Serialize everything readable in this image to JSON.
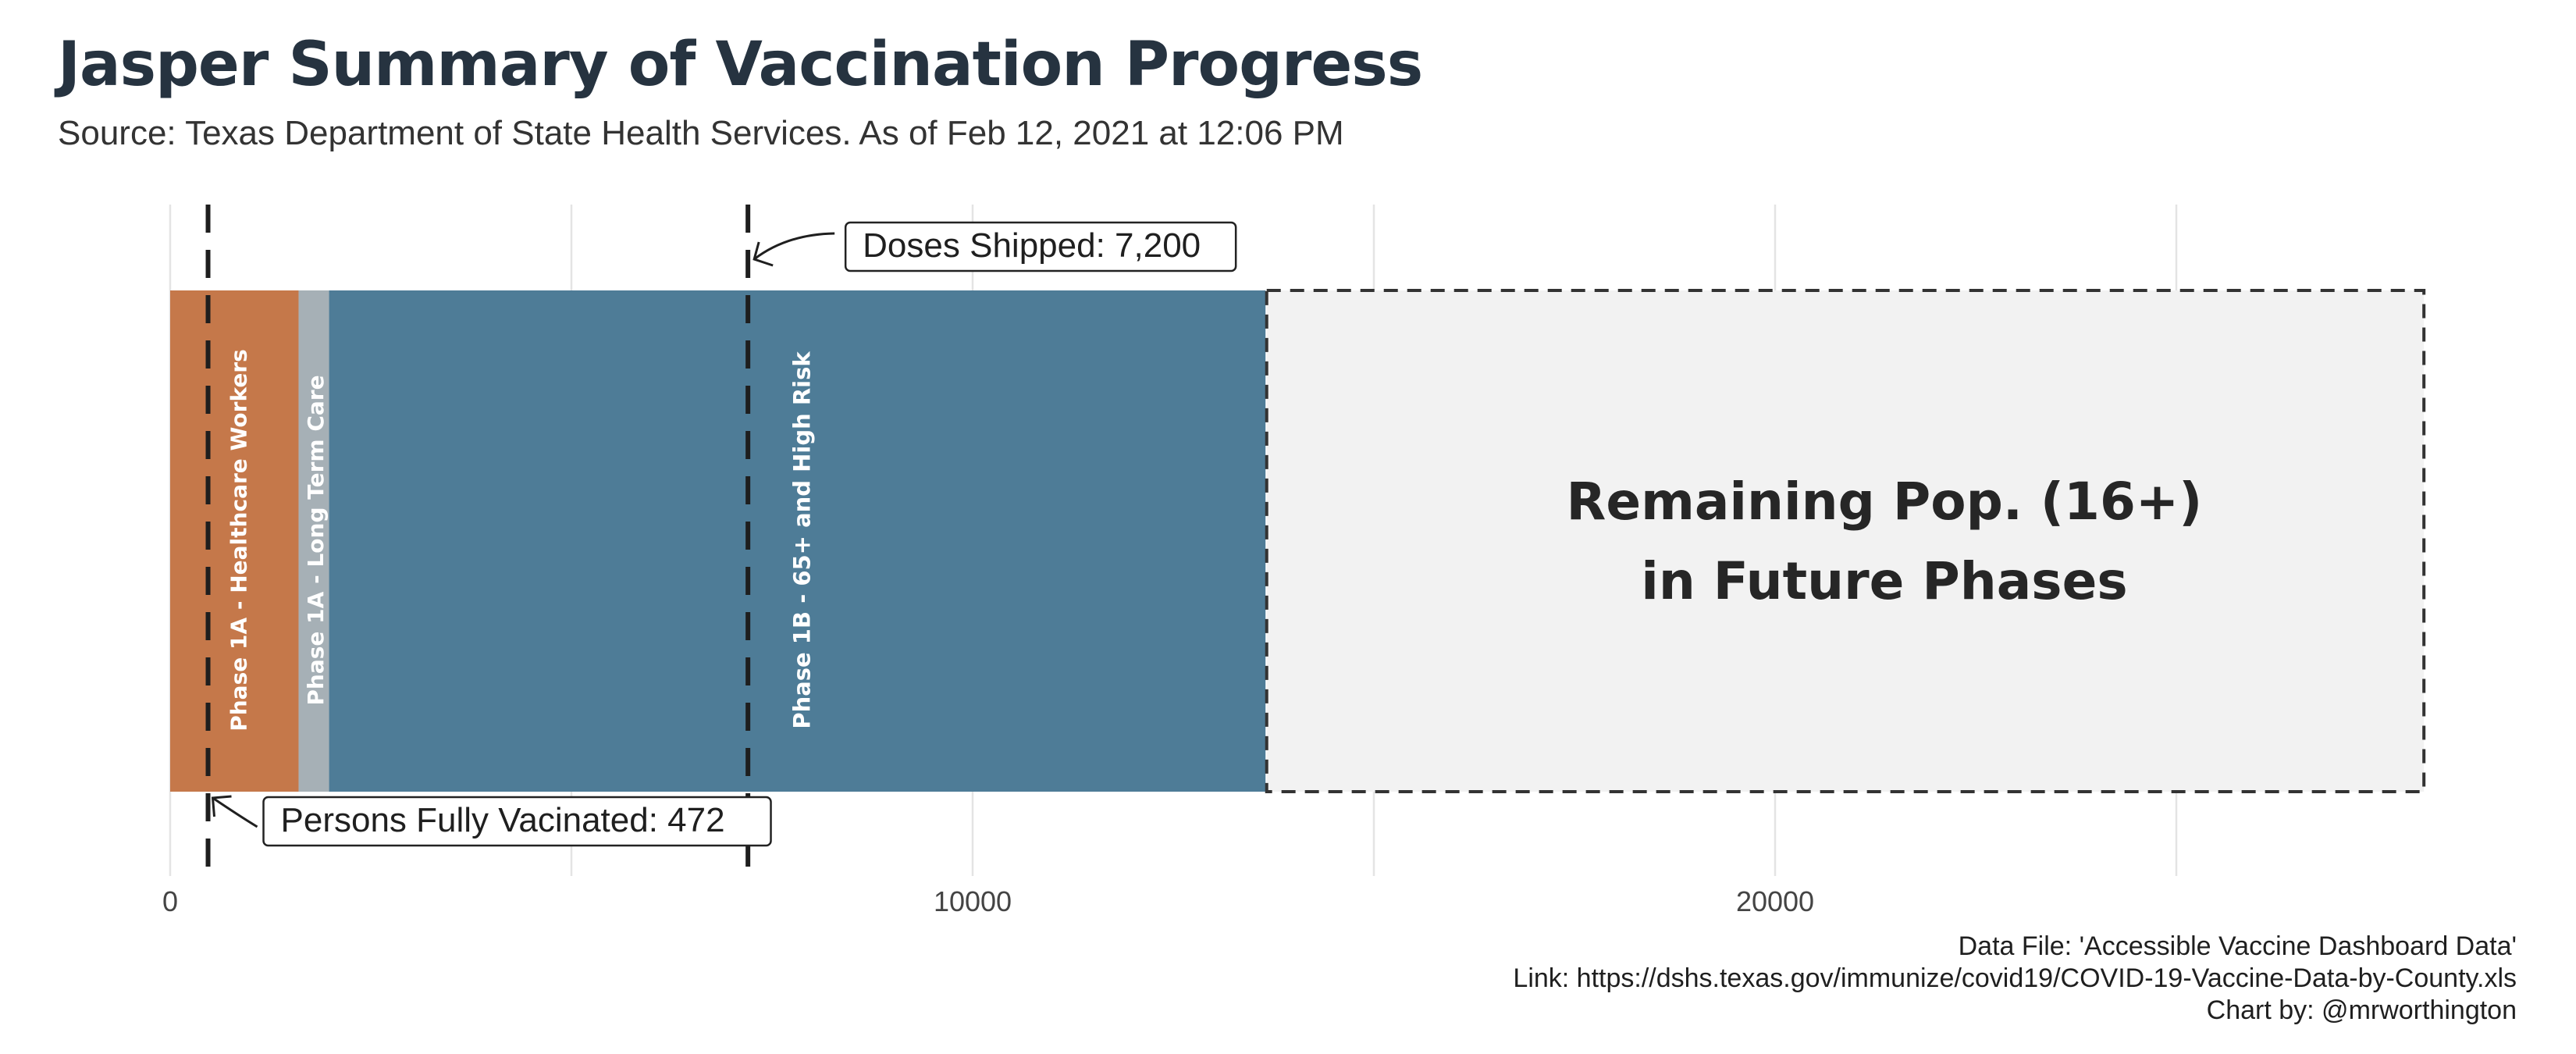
{
  "title": "Jasper Summary of Vaccination Progress",
  "subtitle": "Source: Texas Department of State Health Services. As of Feb 12, 2021 at 12:06 PM",
  "caption": {
    "line1": "Data File: 'Accessible Vaccine Dashboard Data'",
    "line2": "Link: https://dshs.texas.gov/immunize/covid19/COVID-19-Vaccine-Data-by-County.xls",
    "line3": "Chart by: @mrworthington"
  },
  "chart_data": {
    "type": "bar",
    "orientation": "horizontal-stacked",
    "xlim": [
      0,
      28100
    ],
    "x_ticks": [
      0,
      10000,
      20000
    ],
    "x_tick_labels": [
      "0",
      "10000",
      "20000"
    ],
    "grid": true,
    "segments": [
      {
        "name": "Phase 1A - Healthcare Workers",
        "start": 0,
        "end": 1600,
        "color": "#c5784a"
      },
      {
        "name": "Phase 1A - Long Term Care",
        "start": 1600,
        "end": 1980,
        "color": "#a6b0b6"
      },
      {
        "name": "Phase 1B - 65+ and High Risk",
        "start": 1980,
        "end": 13650,
        "color": "#4e7c97"
      },
      {
        "name": "Remaining Pop. (16+)",
        "name2": "in Future Phases",
        "start": 13650,
        "end": 28100,
        "color": "#f2f2f2",
        "dashed": true
      }
    ],
    "reference_lines": [
      {
        "label": "Doses Shipped: 7,200",
        "value": 7200
      },
      {
        "label": "Persons Fully Vacinated: 472",
        "value": 472
      }
    ]
  }
}
